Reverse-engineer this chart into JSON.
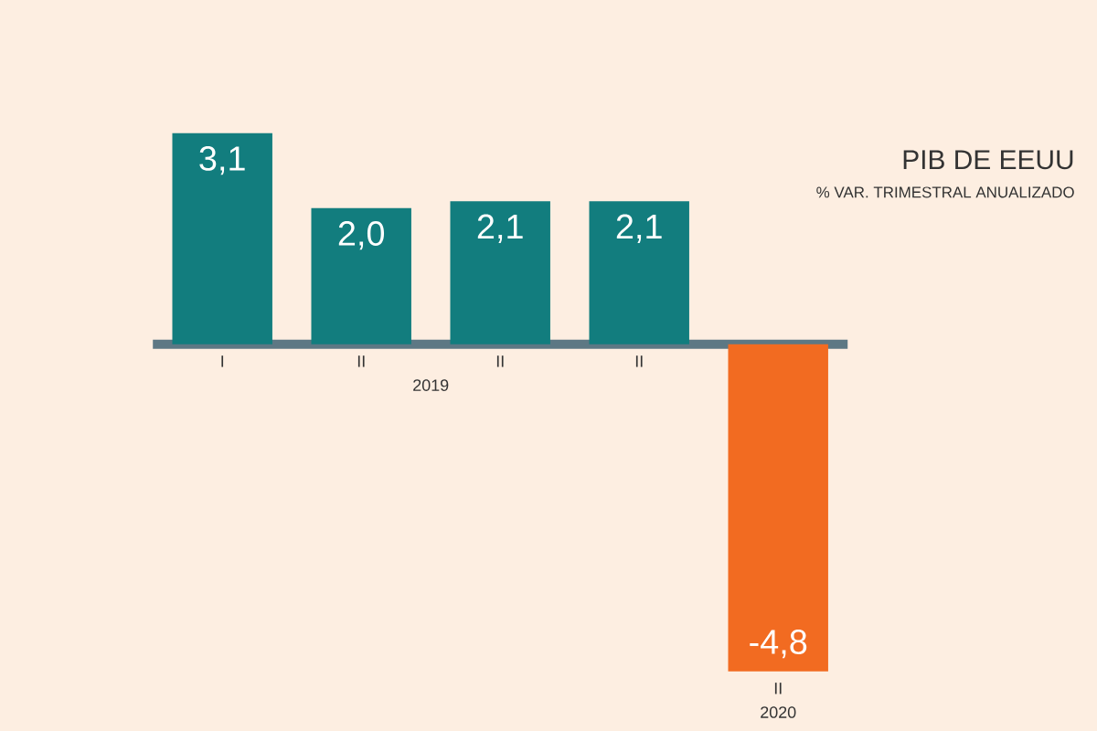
{
  "chart_data": {
    "type": "bar",
    "title": "PIB DE EEUU",
    "subtitle": "% VAR. TRIMESTRAL ANUALIZADO",
    "categories": [
      "I",
      "II",
      "II",
      "II",
      "II"
    ],
    "values": [
      3.1,
      2.0,
      2.1,
      2.1,
      -4.8
    ],
    "value_labels": [
      "3,1",
      "2,0",
      "2,1",
      "2,1",
      "-4,8"
    ],
    "colors": [
      "#127d7e",
      "#127d7e",
      "#127d7e",
      "#127d7e",
      "#f26b21"
    ],
    "annotations": [
      "2019",
      "2020"
    ],
    "tick_labels": "x"
  }
}
